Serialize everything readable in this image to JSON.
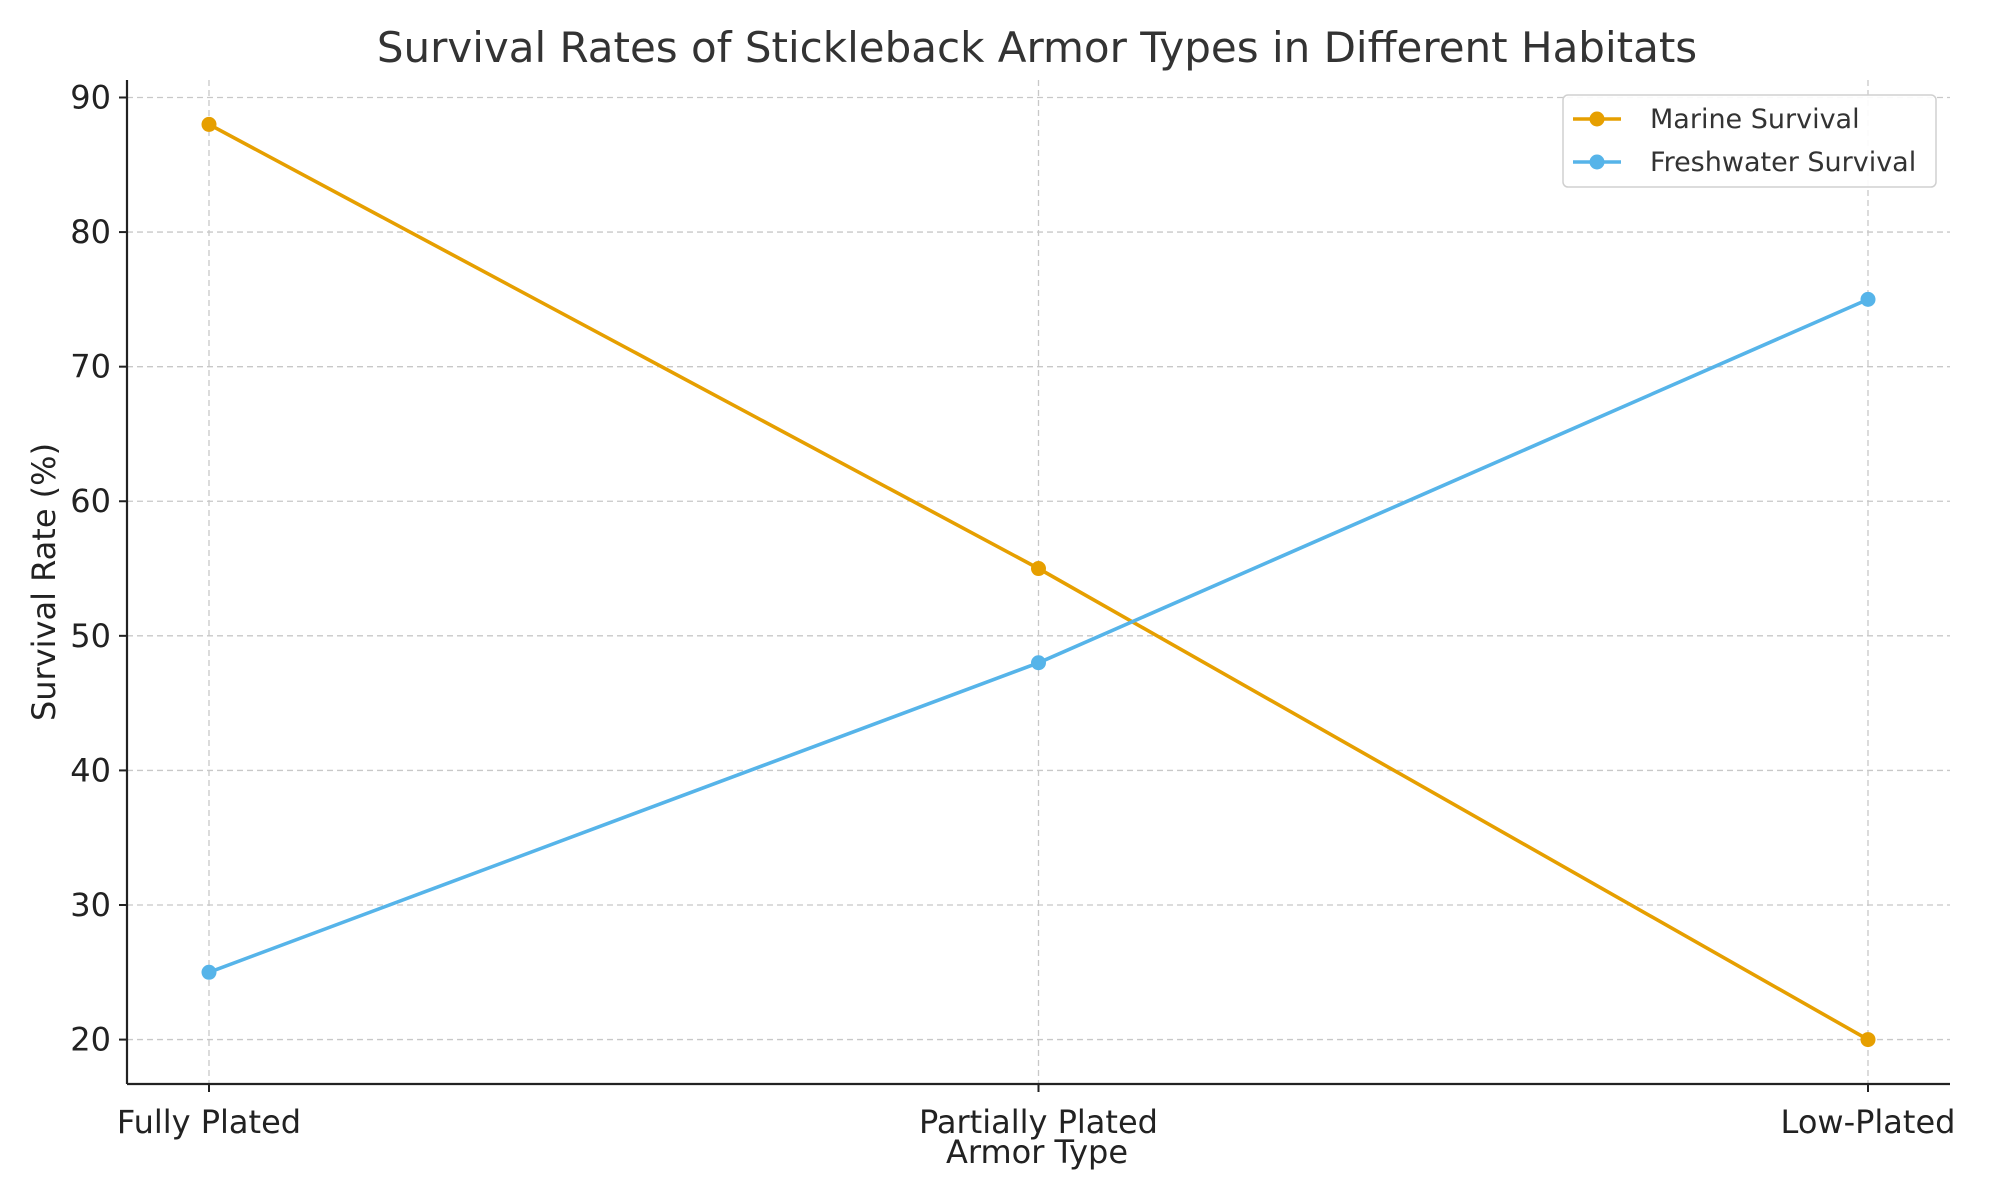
{
  "chart_data": {
    "type": "line",
    "title": "Survival Rates of Stickleback Armor Types in Different Habitats",
    "xlabel": "Armor Type",
    "ylabel": "Survival Rate (%)",
    "categories": [
      "Fully Plated",
      "Partially Plated",
      "Low-Plated"
    ],
    "ylim": [
      16.7,
      91.3
    ],
    "yticks": [
      20,
      30,
      40,
      50,
      60,
      70,
      80,
      90
    ],
    "grid": true,
    "legend_position": "top-right",
    "series": [
      {
        "name": "Marine Survival",
        "values": [
          88,
          55,
          20
        ],
        "color": "#E69F00",
        "marker": "circle"
      },
      {
        "name": "Freshwater Survival",
        "values": [
          25,
          48,
          75
        ],
        "color": "#56B4E9",
        "marker": "circle"
      }
    ]
  }
}
